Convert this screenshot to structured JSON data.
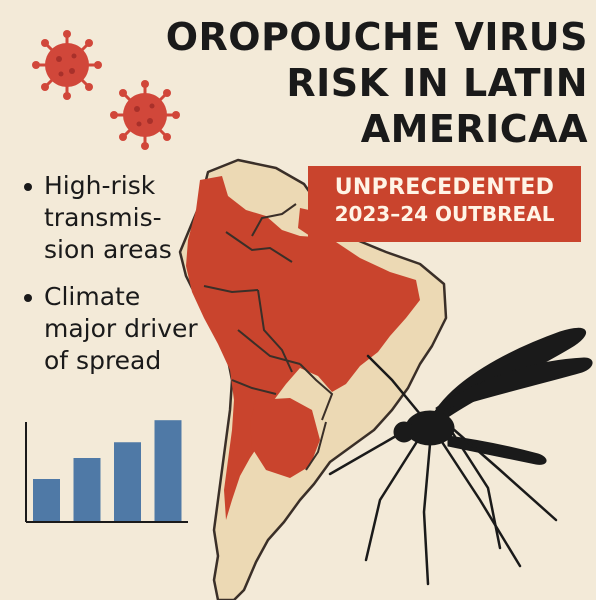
{
  "title": {
    "line1": "OROPOUCHE VIRUS",
    "line2": "RISK IN LATIN",
    "line3": "AMERICAA"
  },
  "banner": {
    "line1": "UNPRECEDENTED",
    "line2": "2023–24 OUTBREAL"
  },
  "bullets": [
    {
      "text": "High-risk\ntransmis-\nsion areas"
    },
    {
      "text": "Climate\nmajor driver\nof spread"
    }
  ],
  "chart_data": {
    "type": "bar",
    "values": [
      40,
      60,
      75,
      96
    ],
    "ylim": [
      0,
      100
    ]
  },
  "colors": {
    "background": "#f3ead8",
    "risk_red": "#c9442d",
    "land_beige": "#ecd9b4",
    "bar_blue": "#4f79a6",
    "ink": "#1a1a1a"
  },
  "icons": [
    "virus-icon",
    "virus-icon",
    "mosquito-icon",
    "south-america-map"
  ]
}
